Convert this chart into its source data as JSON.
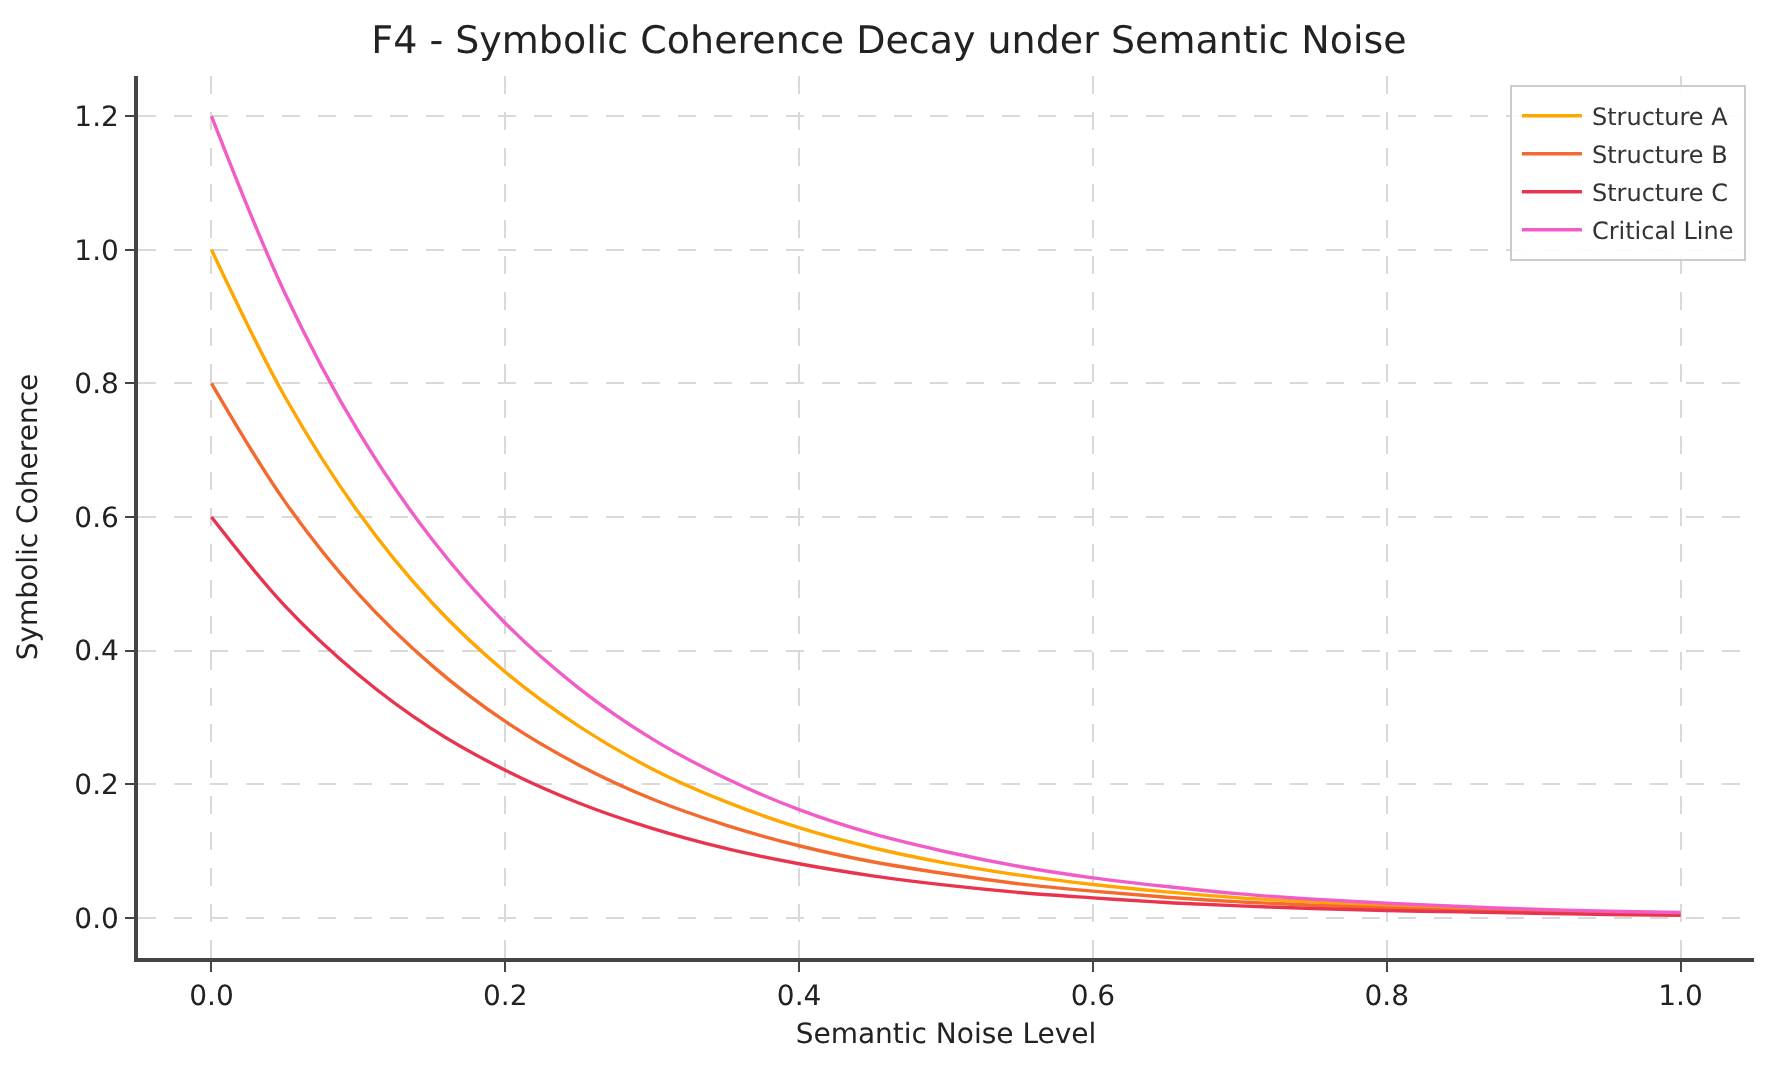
{
  "chart_data": {
    "type": "line",
    "title": "F4 - Symbolic Coherence Decay under Semantic Noise",
    "xlabel": "Semantic Noise Level",
    "ylabel": "Symbolic Coherence",
    "x": [
      0,
      0.05,
      0.1,
      0.15,
      0.2,
      0.25,
      0.3,
      0.35,
      0.4,
      0.45,
      0.5,
      0.55,
      0.6,
      0.65,
      0.7,
      0.75,
      0.8,
      0.85,
      0.9,
      0.95,
      1.0
    ],
    "series": [
      {
        "name": "Structure A",
        "color": "#ffa600",
        "values": [
          1.0,
          0.78,
          0.607,
          0.472,
          0.368,
          0.287,
          0.223,
          0.174,
          0.135,
          0.105,
          0.082,
          0.064,
          0.05,
          0.039,
          0.03,
          0.024,
          0.018,
          0.014,
          0.011,
          null,
          null
        ]
      },
      {
        "name": "Structure B",
        "color": "#f46a2e",
        "values": [
          0.8,
          0.623,
          0.485,
          0.378,
          0.294,
          0.229,
          0.178,
          0.139,
          0.108,
          0.084,
          0.066,
          0.051,
          0.04,
          0.031,
          0.024,
          0.019,
          0.015,
          0.011,
          0.009,
          0.007,
          0.005
        ]
      },
      {
        "name": "Structure C",
        "color": "#e8344e",
        "values": [
          0.6,
          0.467,
          0.364,
          0.283,
          0.221,
          0.172,
          0.134,
          0.104,
          0.081,
          0.063,
          0.049,
          0.038,
          0.03,
          0.023,
          0.018,
          0.014,
          0.011,
          0.009,
          0.007,
          0.005,
          0.004
        ]
      },
      {
        "name": "Critical Line",
        "color": "#f25cc7",
        "values": [
          1.2,
          0.935,
          0.728,
          0.567,
          0.441,
          0.344,
          0.268,
          0.209,
          0.162,
          0.126,
          0.099,
          0.077,
          0.06,
          0.047,
          0.036,
          0.028,
          0.022,
          0.017,
          0.013,
          0.01,
          0.008
        ]
      }
    ],
    "xlim": [
      -0.05,
      1.05
    ],
    "xticks": [
      {
        "value": 0,
        "label": "0.0"
      },
      0.2,
      0.4,
      0.6,
      0.8,
      {
        "value": 1,
        "label": "1.0"
      }
    ],
    "ylim": [
      -0.06,
      1.26
    ],
    "yticks": [
      {
        "value": 0,
        "label": "0.0"
      },
      0.2,
      0.4,
      0.6,
      0.8,
      {
        "value": 1,
        "label": "1.0"
      },
      1.2
    ],
    "grid": true,
    "legend": "top right",
    "marker": "none",
    "line_style": "solid"
  }
}
